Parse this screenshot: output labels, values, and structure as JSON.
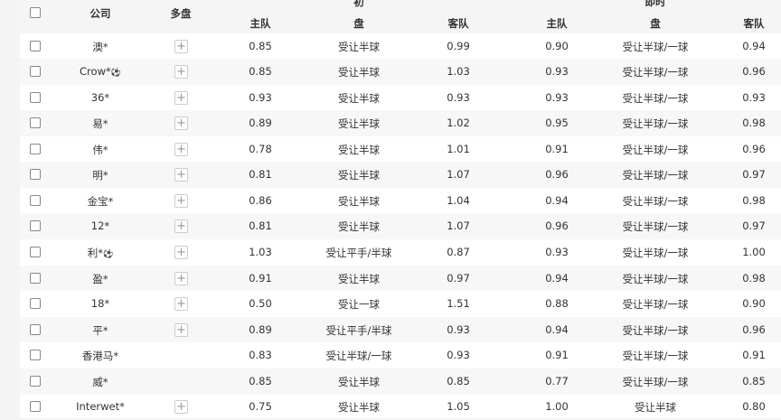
{
  "header": {
    "company": "公司",
    "multi": "多盘",
    "initial": "初",
    "live": "即时",
    "home": "主队",
    "line": "盘",
    "away": "客队"
  },
  "rows": [
    {
      "company": "澳*",
      "ball": false,
      "plus": true,
      "i_home": "0.85",
      "i_line": "受让半球",
      "i_away": "0.99",
      "l_home": "0.90",
      "l_line": "受让半球/一球",
      "l_away": "0.94"
    },
    {
      "company": "Crow*",
      "ball": true,
      "plus": true,
      "i_home": "0.85",
      "i_line": "受让半球",
      "i_away": "1.03",
      "l_home": "0.93",
      "l_line": "受让半球/一球",
      "l_away": "0.96"
    },
    {
      "company": "36*",
      "ball": false,
      "plus": true,
      "i_home": "0.93",
      "i_line": "受让半球",
      "i_away": "0.93",
      "l_home": "0.93",
      "l_line": "受让半球/一球",
      "l_away": "0.93"
    },
    {
      "company": "易*",
      "ball": false,
      "plus": true,
      "i_home": "0.89",
      "i_line": "受让半球",
      "i_away": "1.02",
      "l_home": "0.95",
      "l_line": "受让半球/一球",
      "l_away": "0.98"
    },
    {
      "company": "伟*",
      "ball": false,
      "plus": true,
      "i_home": "0.78",
      "i_line": "受让半球",
      "i_away": "1.01",
      "l_home": "0.91",
      "l_line": "受让半球/一球",
      "l_away": "0.96"
    },
    {
      "company": "明*",
      "ball": false,
      "plus": true,
      "i_home": "0.81",
      "i_line": "受让半球",
      "i_away": "1.07",
      "l_home": "0.96",
      "l_line": "受让半球/一球",
      "l_away": "0.97"
    },
    {
      "company": "金宝*",
      "ball": false,
      "plus": true,
      "i_home": "0.86",
      "i_line": "受让半球",
      "i_away": "1.04",
      "l_home": "0.94",
      "l_line": "受让半球/一球",
      "l_away": "0.98"
    },
    {
      "company": "12*",
      "ball": false,
      "plus": true,
      "i_home": "0.81",
      "i_line": "受让半球",
      "i_away": "1.07",
      "l_home": "0.96",
      "l_line": "受让半球/一球",
      "l_away": "0.97"
    },
    {
      "company": "利*",
      "ball": true,
      "plus": true,
      "i_home": "1.03",
      "i_line": "受让平手/半球",
      "i_away": "0.87",
      "l_home": "0.93",
      "l_line": "受让半球/一球",
      "l_away": "1.00"
    },
    {
      "company": "盈*",
      "ball": false,
      "plus": true,
      "i_home": "0.91",
      "i_line": "受让半球",
      "i_away": "0.97",
      "l_home": "0.94",
      "l_line": "受让半球/一球",
      "l_away": "0.98"
    },
    {
      "company": "18*",
      "ball": false,
      "plus": true,
      "i_home": "0.50",
      "i_line": "受让一球",
      "i_away": "1.51",
      "l_home": "0.88",
      "l_line": "受让半球/一球",
      "l_away": "0.90"
    },
    {
      "company": "平*",
      "ball": false,
      "plus": true,
      "i_home": "0.89",
      "i_line": "受让平手/半球",
      "i_away": "0.93",
      "l_home": "0.94",
      "l_line": "受让半球/一球",
      "l_away": "0.96"
    },
    {
      "company": "香港马*",
      "ball": false,
      "plus": false,
      "i_home": "0.83",
      "i_line": "受让半球/一球",
      "i_away": "0.93",
      "l_home": "0.91",
      "l_line": "受让半球/一球",
      "l_away": "0.91"
    },
    {
      "company": "威*",
      "ball": false,
      "plus": false,
      "i_home": "0.85",
      "i_line": "受让半球",
      "i_away": "0.85",
      "l_home": "0.77",
      "l_line": "受让半球/一球",
      "l_away": "0.85"
    },
    {
      "company": "Interwet*",
      "ball": false,
      "plus": true,
      "i_home": "0.75",
      "i_line": "受让半球",
      "i_away": "1.05",
      "l_home": "1.00",
      "l_line": "受让半球",
      "l_away": "0.80"
    }
  ]
}
